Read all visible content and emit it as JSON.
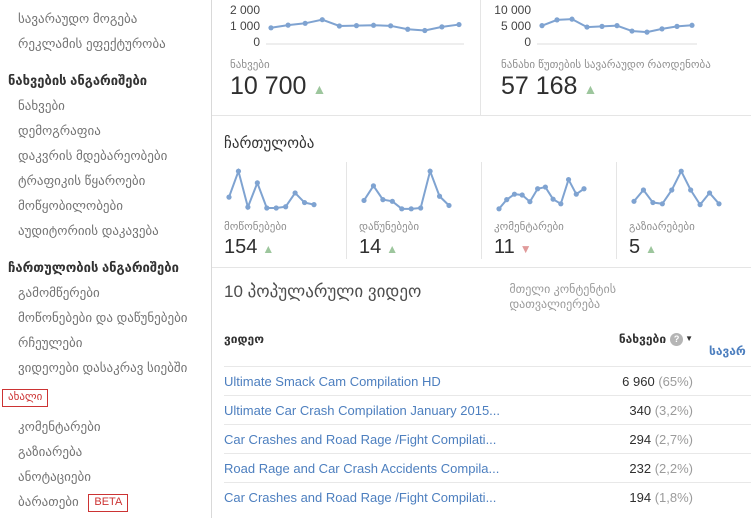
{
  "colors": {
    "chart_line": "#7fa3d1",
    "accent_blue": "#4d7fbf",
    "badge_red": "#cc3333",
    "trend_green": "#9dc69d",
    "trend_red": "#e09a9a"
  },
  "ui": {
    "arrow_up": "▲",
    "arrow_down": "▼",
    "help_icon": "?",
    "sort_arrow": "▼"
  },
  "sidebar": {
    "items": [
      {
        "label": "სავარაუდო მოგება",
        "type": "link"
      },
      {
        "label": "რეკლამის ეფექტურობა",
        "type": "link"
      },
      {
        "label": "ნახვების ანგარიშები",
        "type": "header"
      },
      {
        "label": "ნახვები",
        "type": "link"
      },
      {
        "label": "დემოგრაფია",
        "type": "link"
      },
      {
        "label": "დაკვრის მდებარეობები",
        "type": "link"
      },
      {
        "label": "ტრაფიკის წყაროები",
        "type": "link"
      },
      {
        "label": "მოწყობილობები",
        "type": "link"
      },
      {
        "label": "აუდიტორიის დაკავება",
        "type": "link"
      },
      {
        "label": "ჩართულობის ანგარიშები",
        "type": "header"
      },
      {
        "label": "გამომწერები",
        "type": "link"
      },
      {
        "label": "მოწონებები და დაწუნებები",
        "type": "link"
      },
      {
        "label": "რჩეულები",
        "type": "link"
      },
      {
        "label": "ვიდეოები დასაკრავ სიებში",
        "type": "link"
      },
      {
        "label": "ახალი",
        "type": "badge"
      },
      {
        "label": "კომენტარები",
        "type": "link"
      },
      {
        "label": "გაზიარება",
        "type": "link"
      },
      {
        "label": "ანოტაციები",
        "type": "link"
      },
      {
        "label": "ბარათები",
        "type": "link",
        "badge": "BETA"
      }
    ]
  },
  "chart_data": [
    {
      "type": "line",
      "title": "ნახვები",
      "yticks": [
        "2 000",
        "1 000",
        "0"
      ],
      "ylim": [
        0,
        2000
      ],
      "values": [
        900,
        1050,
        1150,
        1350,
        1000,
        1020,
        1040,
        1010,
        820,
        750,
        950,
        1080
      ],
      "total": "10 700",
      "trend": "up"
    },
    {
      "type": "line",
      "title": "ნანახი წუთების სავარაუდო რაოდენობა",
      "yticks": [
        "10 000",
        "5 000",
        "0"
      ],
      "ylim": [
        0,
        10000
      ],
      "values": [
        5100,
        6700,
        6900,
        4700,
        4900,
        5100,
        3600,
        3300,
        4200,
        4900,
        5200
      ],
      "total": "57 168",
      "trend": "up"
    }
  ],
  "engagement": {
    "title": "ჩართულობა",
    "cards": [
      {
        "label": "მოწონებები",
        "value": "154",
        "trend": "up",
        "ylim": [
          0,
          110
        ],
        "values": [
          38,
          100,
          14,
          72,
          12,
          12,
          15,
          48,
          25,
          20
        ]
      },
      {
        "label": "დაწუნებები",
        "value": "14",
        "trend": "up",
        "ylim": [
          0,
          110
        ],
        "values": [
          30,
          65,
          32,
          28,
          10,
          10,
          12,
          100,
          40,
          18
        ]
      },
      {
        "label": "კომენტარები",
        "value": "11",
        "trend": "down",
        "ylim": [
          0,
          110
        ],
        "values": [
          10,
          32,
          45,
          43,
          27,
          58,
          62,
          33,
          22,
          80,
          45,
          58
        ]
      },
      {
        "label": "გაზიარებები",
        "value": "5",
        "trend": "up",
        "ylim": [
          0,
          110
        ],
        "values": [
          28,
          55,
          25,
          22,
          55,
          100,
          55,
          20,
          48,
          22
        ]
      }
    ]
  },
  "videos": {
    "title": "10 პოპულარული ვიდეო",
    "browse_link": "მთელი კონტენტის დათვალიერება",
    "col_video": "ვიდეო",
    "col_views": "ნახვები",
    "col_estimated": "სავარ",
    "rows": [
      {
        "title": "Ultimate Smack Cam Compilation HD",
        "views": "6 960",
        "pct": "(65%)"
      },
      {
        "title": "Ultimate Car Crash Compilation January 2015...",
        "views": "340",
        "pct": "(3,2%)"
      },
      {
        "title": "Car Crashes and Road Rage /Fight Compilati...",
        "views": "294",
        "pct": "(2,7%)"
      },
      {
        "title": "Road Rage and Car Crash Accidents Compila...",
        "views": "232",
        "pct": "(2,2%)"
      },
      {
        "title": "Car Crashes and Road Rage /Fight Compilati...",
        "views": "194",
        "pct": "(1,8%)"
      }
    ]
  }
}
